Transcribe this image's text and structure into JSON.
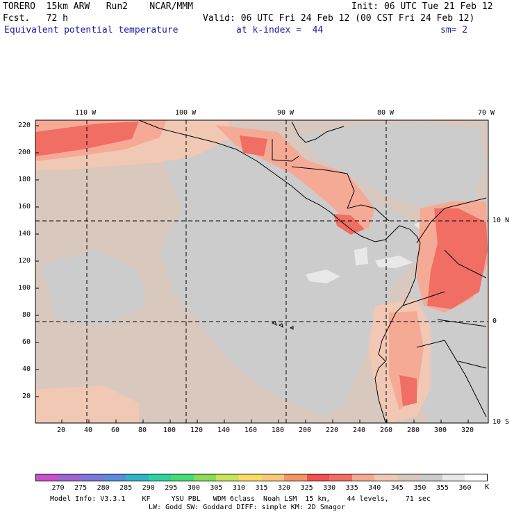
{
  "header": {
    "model": "TORERO  15km ARW   Run2    NCAR/MMM",
    "init": "Init: 06 UTC Tue 21 Feb 12",
    "fcst": "Fcst.   72 h",
    "valid": "Valid: 06 UTC Fri 24 Feb 12 (00 CST Fri 24 Feb 12)",
    "field": "Equivalent potential temperature",
    "kindex": "at k-index =  44",
    "sm": "sm= 2"
  },
  "axes": {
    "lon_labels": [
      "110 W",
      "100 W",
      "90 W",
      "80 W",
      "70 W"
    ],
    "lat_labels": [
      "10 N",
      "0",
      "10 S"
    ],
    "y_ticks": [
      "220",
      "200",
      "180",
      "160",
      "140",
      "120",
      "100",
      "80",
      "60",
      "40",
      "20"
    ],
    "x_ticks": [
      "20",
      "40",
      "60",
      "80",
      "100",
      "120",
      "140",
      "160",
      "180",
      "200",
      "220",
      "240",
      "260",
      "280",
      "300",
      "320"
    ]
  },
  "colorbar": {
    "labels": [
      "270",
      "275",
      "280",
      "285",
      "290",
      "295",
      "300",
      "305",
      "310",
      "315",
      "320",
      "325",
      "330",
      "335",
      "340",
      "345",
      "350",
      "355",
      "360"
    ],
    "unit": "K",
    "colors": [
      "#c850c8",
      "#a064d2",
      "#7a78dc",
      "#5a8cdc",
      "#32b4c8",
      "#32d2a0",
      "#46dc78",
      "#8cdc5a",
      "#c8e65a",
      "#fadc64",
      "#fac878",
      "#f59664",
      "#f05050",
      "#f06e64",
      "#f5aa96",
      "#f0c8b4",
      "#d8c8be",
      "#cccccc",
      "#e8e8e8",
      "#ffffff"
    ]
  },
  "footer": {
    "line1": "Model Info: V3.3.1    KF     YSU PBL   WDM 6class  Noah LSM  15 km,    44 levels,    71 sec",
    "line2": "LW: Godd SW: Goddard DIFF: simple KM: 2D Smagor"
  }
}
